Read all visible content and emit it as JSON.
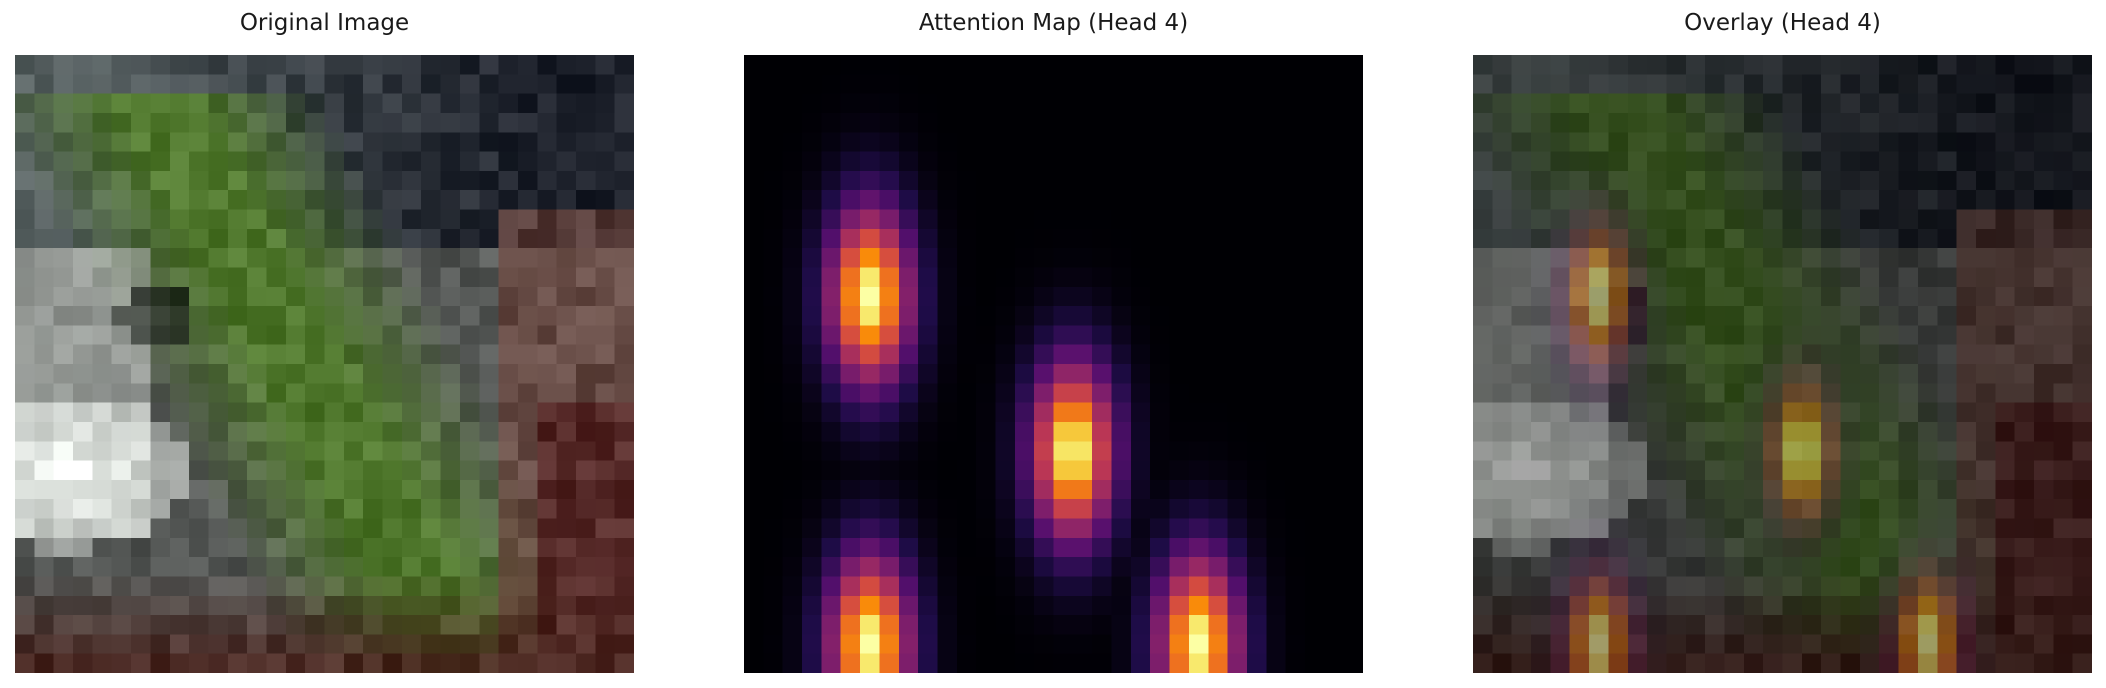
{
  "panels": [
    {
      "title": "Original Image",
      "image": "original-photo"
    },
    {
      "title": "Attention Map (Head 4)",
      "image": "attention-heatmap"
    },
    {
      "title": "Overlay (Head 4)",
      "image": "attention-overlay"
    }
  ],
  "colors": {
    "background": "#ffffff",
    "title_text": "#1a1a1a",
    "heat_low": "#000004",
    "heat_mid": "#b5367a",
    "heat_high": "#fcffa4"
  }
}
